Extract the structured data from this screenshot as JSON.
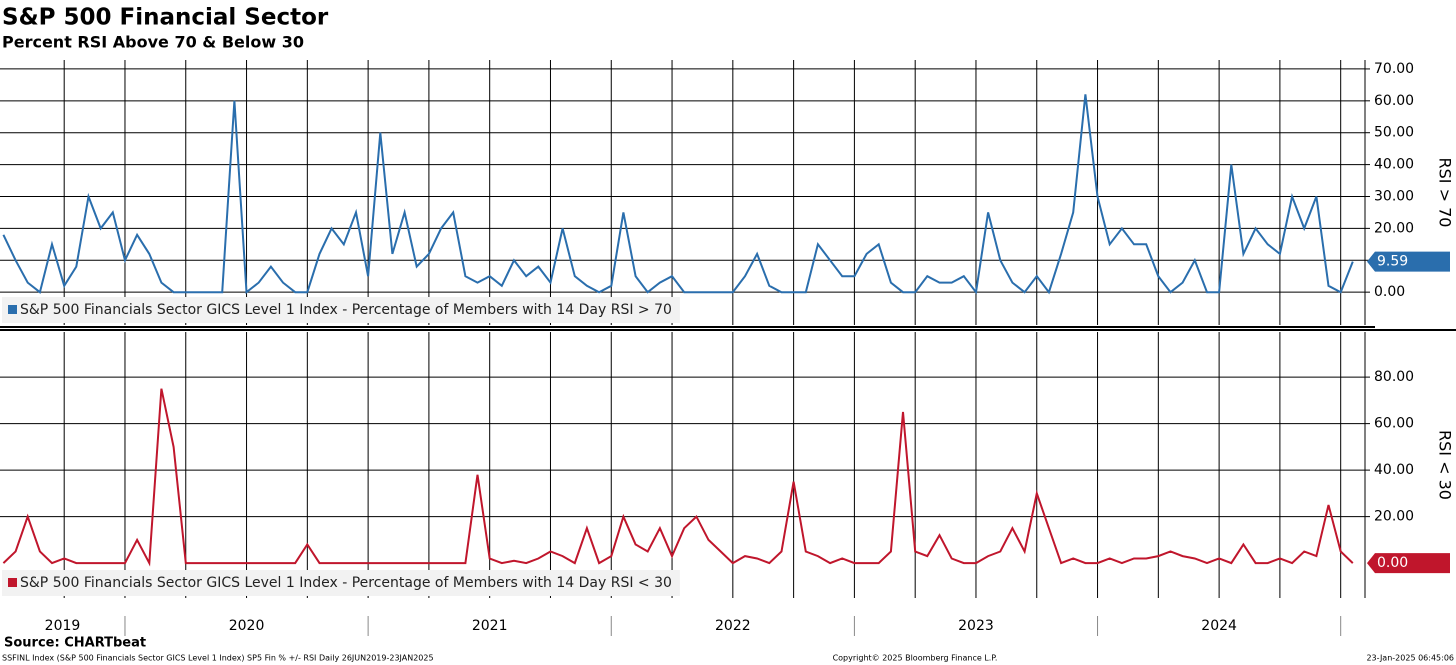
{
  "header": {
    "title": "S&P 500 Financial Sector",
    "subtitle": "Percent RSI Above 70 & Below 30"
  },
  "x_axis": {
    "xlim": [
      2019.486,
      2025.1
    ],
    "xticks": [
      2019.75,
      2020,
      2020.25,
      2020.5,
      2020.75,
      2021,
      2021.25,
      2021.5,
      2021.75,
      2022,
      2022.25,
      2022.5,
      2022.75,
      2023,
      2023.25,
      2023.5,
      2023.75,
      2024,
      2024.25,
      2024.5,
      2024.75,
      2025
    ],
    "year_labels": [
      "2019",
      "2020",
      "2021",
      "2022",
      "2023",
      "2024"
    ]
  },
  "chart_data": [
    {
      "type": "line",
      "axis_label": "RSI > 70",
      "ylim": [
        -10.3,
        72.8
      ],
      "yticks": [
        {
          "value": 0,
          "label": "0.00"
        },
        {
          "value": 10,
          "label": "10.00"
        },
        {
          "value": 20,
          "label": "20.00"
        },
        {
          "value": 30,
          "label": "30.00"
        },
        {
          "value": 40,
          "label": "40.00"
        },
        {
          "value": 50,
          "label": "50.00"
        },
        {
          "value": 60,
          "label": "60.00"
        },
        {
          "value": 70,
          "label": "70.00"
        }
      ],
      "grid": true,
      "x": [
        2019.5,
        2019.55,
        2019.6,
        2019.65,
        2019.7,
        2019.75,
        2019.8,
        2019.85,
        2019.9,
        2019.95,
        2020,
        2020.05,
        2020.1,
        2020.15,
        2020.2,
        2020.25,
        2020.3,
        2020.35,
        2020.4,
        2020.45,
        2020.5,
        2020.55,
        2020.6,
        2020.65,
        2020.7,
        2020.75,
        2020.8,
        2020.85,
        2020.9,
        2020.95,
        2021,
        2021.05,
        2021.1,
        2021.15,
        2021.2,
        2021.25,
        2021.3,
        2021.35,
        2021.4,
        2021.45,
        2021.5,
        2021.55,
        2021.6,
        2021.65,
        2021.7,
        2021.75,
        2021.8,
        2021.85,
        2021.9,
        2021.95,
        2022,
        2022.05,
        2022.1,
        2022.15,
        2022.2,
        2022.25,
        2022.3,
        2022.35,
        2022.4,
        2022.45,
        2022.5,
        2022.55,
        2022.6,
        2022.65,
        2022.7,
        2022.75,
        2022.8,
        2022.85,
        2022.9,
        2022.95,
        2023,
        2023.05,
        2023.1,
        2023.15,
        2023.2,
        2023.25,
        2023.3,
        2023.35,
        2023.4,
        2023.45,
        2023.5,
        2023.55,
        2023.6,
        2023.65,
        2023.7,
        2023.75,
        2023.8,
        2023.85,
        2023.9,
        2023.95,
        2024,
        2024.05,
        2024.1,
        2024.15,
        2024.2,
        2024.25,
        2024.3,
        2024.35,
        2024.4,
        2024.45,
        2024.5,
        2024.55,
        2024.6,
        2024.65,
        2024.7,
        2024.75,
        2024.8,
        2024.85,
        2024.9,
        2024.95,
        2025,
        2025.05
      ],
      "series": [
        {
          "name": "S&P 500 Financials Sector GICS Level 1 Index - Percentage of Members with 14 Day RSI > 70",
          "color": "#2a6ead",
          "values": [
            18,
            10,
            3,
            0,
            15,
            2,
            8,
            30,
            20,
            25,
            10,
            18,
            12,
            3,
            0,
            0,
            0,
            0,
            0,
            60,
            0,
            3,
            8,
            3,
            0,
            0,
            12,
            20,
            15,
            25,
            5,
            50,
            12,
            25,
            8,
            12,
            20,
            25,
            5,
            3,
            5,
            2,
            10,
            5,
            8,
            3,
            20,
            5,
            2,
            0,
            2,
            25,
            5,
            0,
            3,
            5,
            0,
            0,
            0,
            0,
            0,
            5,
            12,
            2,
            0,
            0,
            0,
            15,
            10,
            5,
            5,
            12,
            15,
            3,
            0,
            0,
            5,
            3,
            3,
            5,
            0,
            25,
            10,
            3,
            0,
            5,
            0,
            12,
            25,
            62,
            30,
            15,
            20,
            15,
            15,
            5,
            0,
            3,
            10,
            0,
            0,
            40,
            12,
            20,
            15,
            12,
            30,
            20,
            30,
            2,
            0,
            9.59
          ],
          "last_label": "9.59"
        }
      ]
    },
    {
      "type": "line",
      "axis_label": "RSI < 30",
      "ylim": [
        -15,
        99.4
      ],
      "yticks": [
        {
          "value": 20,
          "label": "20.00"
        },
        {
          "value": 40,
          "label": "40.00"
        },
        {
          "value": 60,
          "label": "60.00"
        },
        {
          "value": 80,
          "label": "80.00"
        }
      ],
      "grid": true,
      "x": [
        2019.5,
        2019.55,
        2019.6,
        2019.65,
        2019.7,
        2019.75,
        2019.8,
        2019.85,
        2019.9,
        2019.95,
        2020,
        2020.05,
        2020.1,
        2020.15,
        2020.2,
        2020.25,
        2020.3,
        2020.35,
        2020.4,
        2020.45,
        2020.5,
        2020.55,
        2020.6,
        2020.65,
        2020.7,
        2020.75,
        2020.8,
        2020.85,
        2020.9,
        2020.95,
        2021,
        2021.05,
        2021.1,
        2021.15,
        2021.2,
        2021.25,
        2021.3,
        2021.35,
        2021.4,
        2021.45,
        2021.5,
        2021.55,
        2021.6,
        2021.65,
        2021.7,
        2021.75,
        2021.8,
        2021.85,
        2021.9,
        2021.95,
        2022,
        2022.05,
        2022.1,
        2022.15,
        2022.2,
        2022.25,
        2022.3,
        2022.35,
        2022.4,
        2022.45,
        2022.5,
        2022.55,
        2022.6,
        2022.65,
        2022.7,
        2022.75,
        2022.8,
        2022.85,
        2022.9,
        2022.95,
        2023,
        2023.05,
        2023.1,
        2023.15,
        2023.2,
        2023.25,
        2023.3,
        2023.35,
        2023.4,
        2023.45,
        2023.5,
        2023.55,
        2023.6,
        2023.65,
        2023.7,
        2023.75,
        2023.8,
        2023.85,
        2023.9,
        2023.95,
        2024,
        2024.05,
        2024.1,
        2024.15,
        2024.2,
        2024.25,
        2024.3,
        2024.35,
        2024.4,
        2024.45,
        2024.5,
        2024.55,
        2024.6,
        2024.65,
        2024.7,
        2024.75,
        2024.8,
        2024.85,
        2024.9,
        2024.95,
        2025,
        2025.05
      ],
      "series": [
        {
          "name": "S&P 500 Financials Sector GICS Level 1 Index - Percentage of Members with 14 Day RSI < 30",
          "color": "#c0162c",
          "values": [
            0,
            5,
            20,
            5,
            0,
            2,
            0,
            0,
            0,
            0,
            0,
            10,
            0,
            75,
            50,
            0,
            0,
            0,
            0,
            0,
            0,
            0,
            0,
            0,
            0,
            8,
            0,
            0,
            0,
            0,
            0,
            0,
            0,
            0,
            0,
            0,
            0,
            0,
            0,
            38,
            2,
            0,
            1,
            0,
            2,
            5,
            3,
            0,
            15,
            0,
            3,
            20,
            8,
            5,
            15,
            3,
            15,
            20,
            10,
            5,
            0,
            3,
            2,
            0,
            5,
            35,
            5,
            3,
            0,
            2,
            0,
            0,
            0,
            5,
            65,
            5,
            3,
            12,
            2,
            0,
            0,
            3,
            5,
            15,
            5,
            30,
            15,
            0,
            2,
            0,
            0,
            2,
            0,
            2,
            2,
            3,
            5,
            3,
            2,
            0,
            2,
            0,
            8,
            0,
            0,
            2,
            0,
            5,
            3,
            25,
            5,
            0
          ],
          "last_label": "0.00"
        }
      ]
    }
  ],
  "footer": {
    "source": "Source: CHARTbeat",
    "left": "SSFINL Index (S&P 500 Financials Sector GICS Level 1 Index) SP5 Fin % +/- RSI  Daily 26JUN2019-23JAN2025",
    "center": "Copyright© 2025 Bloomberg Finance L.P.",
    "right": "23-Jan-2025 06:45:06"
  }
}
